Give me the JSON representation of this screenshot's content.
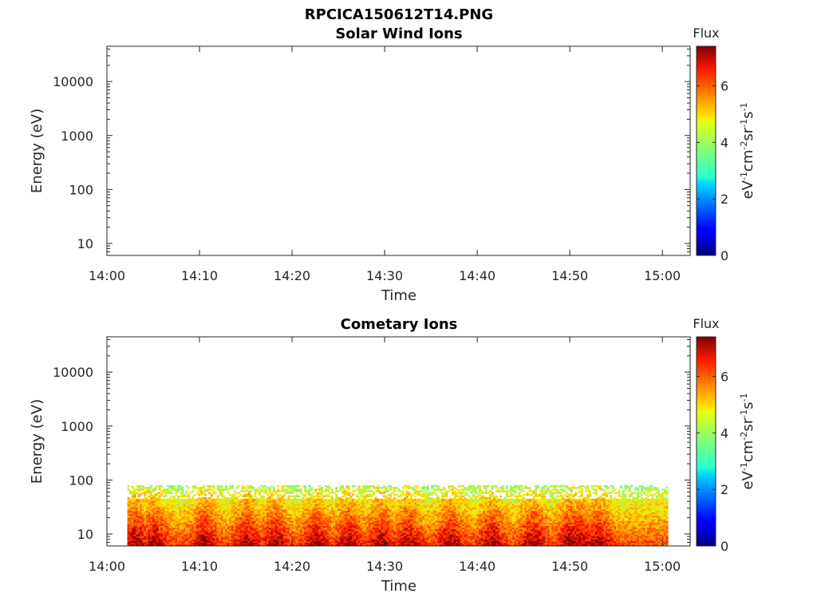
{
  "figure": {
    "filename_title": "RPCICA150612T14.PNG"
  },
  "chart_data": [
    {
      "type": "heatmap",
      "title": "Solar Wind Ions",
      "xlabel": "Time",
      "ylabel": "Energy (eV)",
      "x_ticks": [
        "14:00",
        "14:10",
        "14:20",
        "14:30",
        "14:40",
        "14:50",
        "15:00"
      ],
      "y_ticks": [
        "10",
        "100",
        "1000",
        "10000"
      ],
      "y_scale": "log",
      "ylim": [
        6,
        45000
      ],
      "colorbar": {
        "label": "Flux",
        "units_text": "eV-1cm-2sr-1s-1",
        "units_base": [
          "eV",
          "cm",
          "sr",
          "s"
        ],
        "units_exp": [
          "-1",
          "-2",
          "-1",
          "-1"
        ],
        "ticks": [
          "0",
          "2",
          "4",
          "6"
        ],
        "range": [
          0,
          7.4
        ],
        "colormap": "jet"
      },
      "segments": []
    },
    {
      "type": "heatmap",
      "title": "Cometary Ions",
      "xlabel": "Time",
      "ylabel": "Energy (eV)",
      "x_ticks": [
        "14:00",
        "14:10",
        "14:20",
        "14:30",
        "14:40",
        "14:50",
        "15:00"
      ],
      "y_ticks": [
        "10",
        "100",
        "1000",
        "10000"
      ],
      "y_scale": "log",
      "ylim": [
        6,
        45000
      ],
      "colorbar": {
        "label": "Flux",
        "units_text": "eV-1cm-2sr-1s-1",
        "units_base": [
          "eV",
          "cm",
          "sr",
          "s"
        ],
        "units_exp": [
          "-1",
          "-2",
          "-1",
          "-1"
        ],
        "ticks": [
          "0",
          "2",
          "4",
          "6"
        ],
        "range": [
          0,
          7.4
        ],
        "colormap": "jet"
      },
      "data_time_range_min": [
        2.2,
        60.6
      ],
      "energy_range_eV": [
        6,
        80
      ],
      "flux_range_typical": [
        4,
        7
      ],
      "intense_flux_time_min": [
        3,
        5,
        10.5,
        15,
        18,
        22.5,
        26,
        29.5,
        32.5,
        37,
        41.5,
        46,
        50,
        51,
        53
      ]
    }
  ]
}
